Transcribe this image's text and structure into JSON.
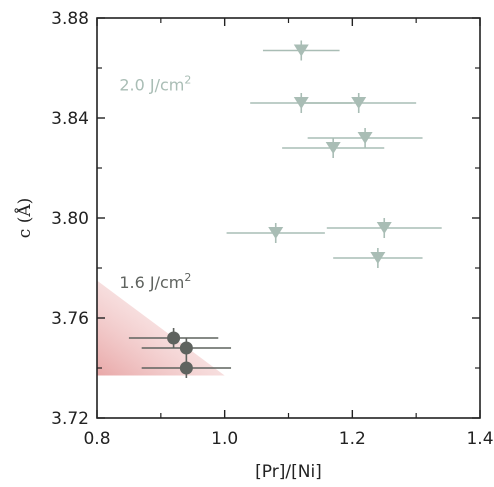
{
  "chart_data": {
    "type": "scatter",
    "xlabel": "[Pr]/[Ni]",
    "ylabel": "c (Å)",
    "xlim": [
      0.8,
      1.4
    ],
    "ylim": [
      3.72,
      3.88
    ],
    "xticks": [
      "0.8",
      "1.0",
      "1.2",
      "1.4"
    ],
    "yticks": [
      "3.72",
      "3.76",
      "3.80",
      "3.84",
      "3.88"
    ],
    "grid": false,
    "annotations": [
      {
        "text": "2.0 J/cm",
        "sup": "2",
        "series": 0,
        "x": 0.835,
        "y": 3.851
      },
      {
        "text": "1.6 J/cm",
        "sup": "2",
        "series": 1,
        "x": 0.835,
        "y": 3.772
      }
    ],
    "shaded_region": {
      "x": [
        0.8,
        1.0
      ],
      "y": [
        3.737,
        3.775
      ],
      "color": "#e7a3a3"
    },
    "series": [
      {
        "marker": "triangle-down",
        "color": "#a9bdb5",
        "points": [
          {
            "x": 1.12,
            "y": 3.867,
            "xerr": 0.06,
            "yerr": 0.004
          },
          {
            "x": 1.12,
            "y": 3.846,
            "xerr": 0.08,
            "yerr": 0.004
          },
          {
            "x": 1.21,
            "y": 3.846,
            "xerr": 0.09,
            "yerr": 0.004
          },
          {
            "x": 1.22,
            "y": 3.832,
            "xerr": 0.09,
            "yerr": 0.004
          },
          {
            "x": 1.17,
            "y": 3.828,
            "xerr": 0.08,
            "yerr": 0.004
          },
          {
            "x": 1.08,
            "y": 3.794,
            "xerr": 0.077,
            "yerr": 0.004
          },
          {
            "x": 1.25,
            "y": 3.796,
            "xerr": 0.09,
            "yerr": 0.004
          },
          {
            "x": 1.24,
            "y": 3.784,
            "xerr": 0.07,
            "yerr": 0.004
          }
        ]
      },
      {
        "marker": "circle",
        "color": "#5f635f",
        "points": [
          {
            "x": 0.92,
            "y": 3.752,
            "xerr": 0.07,
            "yerr": 0.004
          },
          {
            "x": 0.94,
            "y": 3.748,
            "xerr": 0.07,
            "yerr": 0.004
          },
          {
            "x": 0.94,
            "y": 3.74,
            "xerr": 0.07,
            "yerr": 0.004
          }
        ]
      }
    ]
  }
}
